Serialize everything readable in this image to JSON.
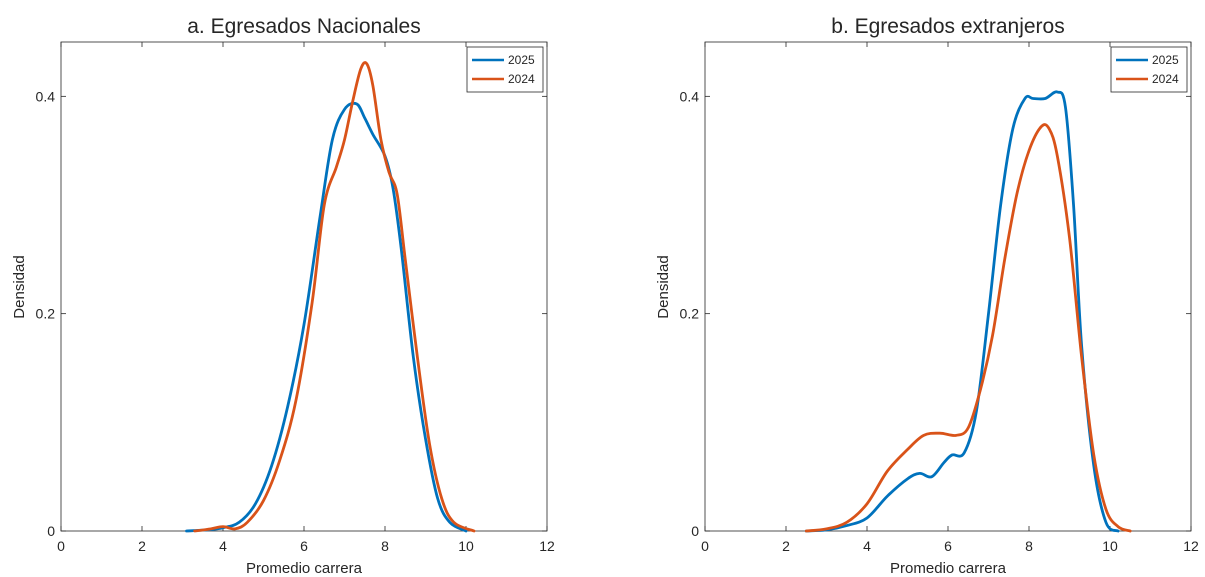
{
  "chart_data": [
    {
      "type": "line",
      "title": "a. Egresados Nacionales",
      "xlabel": "Promedio carrera",
      "ylabel": "Densidad",
      "xlim": [
        0,
        12
      ],
      "ylim": [
        0,
        0.45
      ],
      "xticks": [
        "0",
        "2",
        "4",
        "6",
        "8",
        "10",
        "12"
      ],
      "yticks": [
        "0",
        "0.2",
        "0.4"
      ],
      "grid": false,
      "legend_position": "top-right",
      "series": [
        {
          "name": "2025",
          "color": "#0072bd",
          "x": [
            3.1,
            3.6,
            4.0,
            4.4,
            4.8,
            5.2,
            5.6,
            6.0,
            6.4,
            6.7,
            7.0,
            7.3,
            7.5,
            7.7,
            8.0,
            8.2,
            8.4,
            8.7,
            9.0,
            9.3,
            9.6,
            10.0
          ],
          "y": [
            0.0,
            0.001,
            0.003,
            0.008,
            0.025,
            0.06,
            0.115,
            0.19,
            0.29,
            0.36,
            0.388,
            0.393,
            0.38,
            0.365,
            0.345,
            0.315,
            0.26,
            0.16,
            0.085,
            0.03,
            0.008,
            0.0
          ]
        },
        {
          "name": "2024",
          "color": "#d95319",
          "x": [
            3.3,
            3.7,
            4.0,
            4.3,
            4.6,
            5.0,
            5.4,
            5.8,
            6.2,
            6.5,
            6.8,
            7.0,
            7.2,
            7.4,
            7.55,
            7.7,
            7.9,
            8.1,
            8.3,
            8.5,
            8.8,
            9.1,
            9.4,
            9.7,
            10.2
          ],
          "y": [
            0.0,
            0.002,
            0.004,
            0.002,
            0.008,
            0.028,
            0.065,
            0.12,
            0.21,
            0.3,
            0.335,
            0.36,
            0.395,
            0.425,
            0.43,
            0.41,
            0.36,
            0.33,
            0.31,
            0.25,
            0.16,
            0.08,
            0.03,
            0.008,
            0.0
          ]
        }
      ]
    },
    {
      "type": "line",
      "title": "b. Egresados extranjeros",
      "xlabel": "Promedio carrera",
      "ylabel": "Densidad",
      "xlim": [
        0,
        12
      ],
      "ylim": [
        0,
        0.45
      ],
      "xticks": [
        "0",
        "2",
        "4",
        "6",
        "8",
        "10",
        "12"
      ],
      "yticks": [
        "0",
        "0.2",
        "0.4"
      ],
      "grid": false,
      "legend_position": "top-right",
      "series": [
        {
          "name": "2025",
          "color": "#0072bd",
          "x": [
            2.5,
            3.0,
            3.5,
            4.0,
            4.5,
            5.0,
            5.3,
            5.6,
            5.9,
            6.1,
            6.4,
            6.7,
            7.0,
            7.3,
            7.6,
            7.9,
            8.1,
            8.4,
            8.7,
            8.9,
            9.1,
            9.3,
            9.6,
            9.9,
            10.2
          ],
          "y": [
            0.0,
            0.001,
            0.005,
            0.012,
            0.032,
            0.048,
            0.053,
            0.05,
            0.063,
            0.07,
            0.072,
            0.11,
            0.2,
            0.3,
            0.37,
            0.398,
            0.398,
            0.398,
            0.404,
            0.39,
            0.3,
            0.17,
            0.06,
            0.008,
            0.0
          ]
        },
        {
          "name": "2024",
          "color": "#d95319",
          "x": [
            2.5,
            3.0,
            3.5,
            4.0,
            4.5,
            5.0,
            5.4,
            5.8,
            6.2,
            6.5,
            6.8,
            7.1,
            7.4,
            7.7,
            8.0,
            8.3,
            8.5,
            8.7,
            9.0,
            9.3,
            9.6,
            9.9,
            10.2,
            10.5
          ],
          "y": [
            0.0,
            0.002,
            0.008,
            0.025,
            0.055,
            0.075,
            0.088,
            0.09,
            0.088,
            0.095,
            0.13,
            0.18,
            0.25,
            0.31,
            0.35,
            0.372,
            0.37,
            0.345,
            0.27,
            0.16,
            0.07,
            0.02,
            0.004,
            0.0
          ]
        }
      ]
    }
  ]
}
